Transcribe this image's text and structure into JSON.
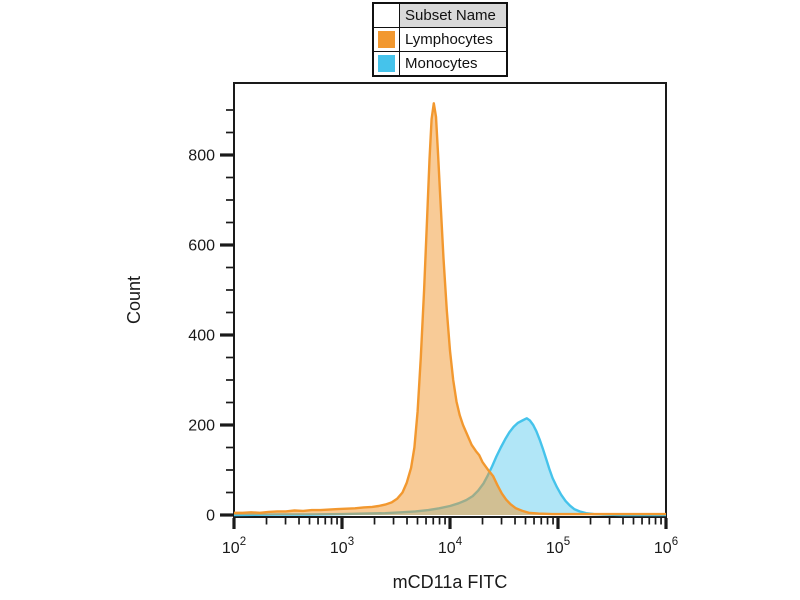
{
  "page": {
    "background": "#ffffff"
  },
  "legend": {
    "header": "Subset Name",
    "entries": [
      {
        "label": "Lymphocytes",
        "color": "#F2982F"
      },
      {
        "label": "Monocytes",
        "color": "#45C3EB"
      }
    ]
  },
  "chart_data": {
    "type": "area",
    "subtype": "flow-cytometry-histogram-overlay",
    "title": "",
    "xlabel": "mCD11a FITC",
    "ylabel": "Count",
    "x_scale": "log10",
    "xlim_log10": [
      2,
      6
    ],
    "x_tick_exponents": [
      2,
      3,
      4,
      5,
      6
    ],
    "x_minor_multiples": [
      2,
      3,
      4,
      5,
      6,
      7,
      8,
      9
    ],
    "y_major_ticks": [
      0,
      200,
      400,
      600,
      800
    ],
    "y_minor_step": 50,
    "y_minor_max": 900,
    "ylim": [
      0,
      960
    ],
    "grid": false,
    "legend_position": "top-center-outside",
    "axis_color": "#1a1a1a",
    "series": [
      {
        "name": "Lymphocytes",
        "stroke": "#F2982F",
        "fill_opacity": 0.5,
        "peak": {
          "log10x": 3.85,
          "count": 915
        },
        "points": [
          [
            2.0,
            5
          ],
          [
            2.08,
            5
          ],
          [
            2.16,
            6
          ],
          [
            2.24,
            5
          ],
          [
            2.32,
            7
          ],
          [
            2.4,
            8
          ],
          [
            2.48,
            8
          ],
          [
            2.56,
            10
          ],
          [
            2.64,
            9
          ],
          [
            2.72,
            11
          ],
          [
            2.8,
            11
          ],
          [
            2.88,
            12
          ],
          [
            2.96,
            13
          ],
          [
            3.04,
            14
          ],
          [
            3.12,
            15
          ],
          [
            3.2,
            17
          ],
          [
            3.28,
            18
          ],
          [
            3.34,
            20
          ],
          [
            3.4,
            23
          ],
          [
            3.46,
            28
          ],
          [
            3.51,
            36
          ],
          [
            3.56,
            50
          ],
          [
            3.6,
            72
          ],
          [
            3.64,
            105
          ],
          [
            3.67,
            150
          ],
          [
            3.7,
            230
          ],
          [
            3.73,
            350
          ],
          [
            3.76,
            500
          ],
          [
            3.79,
            670
          ],
          [
            3.81,
            790
          ],
          [
            3.83,
            880
          ],
          [
            3.85,
            915
          ],
          [
            3.87,
            885
          ],
          [
            3.89,
            800
          ],
          [
            3.91,
            705
          ],
          [
            3.94,
            570
          ],
          [
            3.97,
            455
          ],
          [
            4.0,
            365
          ],
          [
            4.03,
            300
          ],
          [
            4.06,
            252
          ],
          [
            4.09,
            222
          ],
          [
            4.12,
            200
          ],
          [
            4.16,
            178
          ],
          [
            4.2,
            156
          ],
          [
            4.24,
            142
          ],
          [
            4.27,
            133
          ],
          [
            4.3,
            118
          ],
          [
            4.33,
            108
          ],
          [
            4.36,
            98
          ],
          [
            4.4,
            86
          ],
          [
            4.44,
            66
          ],
          [
            4.48,
            48
          ],
          [
            4.52,
            34
          ],
          [
            4.56,
            24
          ],
          [
            4.61,
            15
          ],
          [
            4.67,
            9
          ],
          [
            4.73,
            5
          ],
          [
            4.82,
            3
          ],
          [
            4.95,
            2
          ],
          [
            5.2,
            2
          ],
          [
            5.5,
            2
          ],
          [
            5.8,
            2
          ],
          [
            6.0,
            2
          ]
        ]
      },
      {
        "name": "Monocytes",
        "stroke": "#45C3EB",
        "fill_opacity": 0.42,
        "peak": {
          "log10x": 4.71,
          "count": 215
        },
        "points": [
          [
            2.0,
            0
          ],
          [
            2.4,
            1
          ],
          [
            2.7,
            1
          ],
          [
            3.0,
            2
          ],
          [
            3.2,
            3
          ],
          [
            3.4,
            4
          ],
          [
            3.55,
            6
          ],
          [
            3.68,
            8
          ],
          [
            3.8,
            11
          ],
          [
            3.9,
            15
          ],
          [
            4.0,
            20
          ],
          [
            4.08,
            26
          ],
          [
            4.15,
            33
          ],
          [
            4.21,
            42
          ],
          [
            4.26,
            54
          ],
          [
            4.31,
            70
          ],
          [
            4.35,
            88
          ],
          [
            4.39,
            108
          ],
          [
            4.43,
            130
          ],
          [
            4.47,
            150
          ],
          [
            4.51,
            168
          ],
          [
            4.55,
            184
          ],
          [
            4.59,
            196
          ],
          [
            4.63,
            205
          ],
          [
            4.67,
            210
          ],
          [
            4.71,
            215
          ],
          [
            4.74,
            210
          ],
          [
            4.77,
            200
          ],
          [
            4.8,
            186
          ],
          [
            4.83,
            168
          ],
          [
            4.86,
            147
          ],
          [
            4.89,
            125
          ],
          [
            4.92,
            102
          ],
          [
            4.95,
            82
          ],
          [
            4.99,
            62
          ],
          [
            5.03,
            45
          ],
          [
            5.07,
            31
          ],
          [
            5.11,
            21
          ],
          [
            5.15,
            13
          ],
          [
            5.2,
            8
          ],
          [
            5.26,
            4
          ],
          [
            5.33,
            2
          ],
          [
            5.42,
            1
          ],
          [
            5.6,
            0
          ],
          [
            6.0,
            0
          ]
        ]
      }
    ]
  }
}
